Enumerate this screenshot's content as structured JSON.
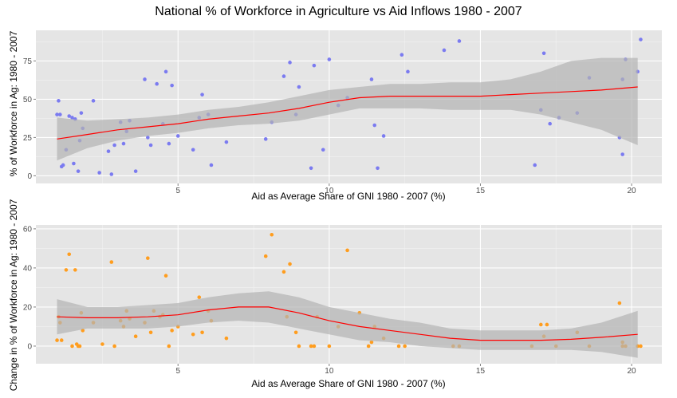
{
  "figure": {
    "title": "National % of Workforce in Agriculture vs Aid Inflows 1980 - 2007"
  },
  "colors": {
    "panel": "#e5e5e5",
    "grid_major": "#ffffff",
    "grid_minor": "#f2f2f2",
    "ribbon": "#b3b3b3",
    "smooth": "#ff0000",
    "points_top": "#7b7bf0",
    "points_bottom": "#ff9d1e"
  },
  "chart_data": [
    {
      "type": "scatter",
      "xlabel": "Aid as Average Share of GNI 1980 - 2007 (%)",
      "ylabel": "% of Workforce in Ag: 1980 - 2007",
      "xlim": [
        0.3,
        21.0
      ],
      "ylim": [
        -5,
        95
      ],
      "xticks": [
        "5",
        "10",
        "15",
        "20"
      ],
      "yticks": [
        "0",
        "25",
        "50",
        "75"
      ],
      "grid": true,
      "series": [
        {
          "kind": "points",
          "x": [
            1.0,
            1.05,
            1.1,
            1.15,
            1.2,
            1.3,
            1.4,
            1.5,
            1.55,
            1.6,
            1.7,
            1.75,
            1.8,
            1.85,
            2.2,
            2.4,
            2.7,
            2.8,
            2.9,
            3.1,
            3.2,
            3.3,
            3.4,
            3.6,
            3.9,
            4.0,
            4.1,
            4.3,
            4.5,
            4.6,
            4.7,
            4.8,
            5.0,
            5.5,
            5.7,
            5.8,
            6.0,
            6.1,
            6.6,
            7.9,
            8.1,
            8.5,
            8.7,
            8.9,
            9.0,
            9.4,
            9.5,
            9.8,
            10.0,
            10.3,
            10.6,
            11.4,
            11.5,
            11.6,
            11.8,
            12.4,
            12.6,
            13.8,
            14.3,
            16.8,
            17.0,
            17.1,
            17.3,
            17.6,
            18.2,
            18.6,
            19.6,
            19.7,
            19.7,
            19.8,
            20.2,
            20.3
          ],
          "y": [
            40,
            49,
            40,
            6,
            7,
            17,
            39,
            38,
            8,
            37,
            3,
            23,
            41,
            31,
            49,
            2,
            16,
            1,
            20,
            35,
            21,
            29,
            36,
            3,
            63,
            25,
            20,
            60,
            34,
            68,
            21,
            59,
            26,
            17,
            38,
            53,
            40,
            7,
            22,
            24,
            35,
            65,
            74,
            40,
            58,
            5,
            72,
            17,
            76,
            46,
            51,
            63,
            33,
            5,
            26,
            79,
            68,
            82,
            88,
            7,
            43,
            80,
            34,
            38,
            41,
            64,
            25,
            14,
            63,
            76,
            68,
            89
          ]
        },
        {
          "kind": "smooth",
          "x": [
            1,
            2,
            3,
            4,
            5,
            6,
            7,
            8,
            9,
            10,
            11,
            12,
            13,
            14,
            15,
            16,
            17,
            18,
            19,
            20.2
          ],
          "y": [
            24,
            27,
            30,
            32,
            34,
            37,
            39,
            41,
            44,
            48,
            51,
            52,
            52,
            52,
            52,
            53,
            54,
            55,
            56,
            58
          ],
          "lower": [
            10,
            18,
            23,
            26,
            28,
            31,
            33,
            34,
            36,
            40,
            44,
            44,
            44,
            43,
            43,
            43,
            40,
            35,
            30,
            20
          ],
          "upper": [
            38,
            36,
            37,
            38,
            40,
            43,
            45,
            48,
            52,
            56,
            58,
            60,
            60,
            61,
            61,
            63,
            68,
            75,
            77,
            77
          ]
        }
      ]
    },
    {
      "type": "scatter",
      "xlabel": "Aid as Average Share of GNI 1980 - 2007 (%)",
      "ylabel": "Change in % of Workforce in Ag: 1980 - 2007",
      "xlim": [
        0.3,
        21.0
      ],
      "ylim": [
        -9,
        62
      ],
      "xticks": [
        "5",
        "10",
        "15",
        "20"
      ],
      "yticks": [
        "0",
        "20",
        "40",
        "60"
      ],
      "grid": true,
      "series": [
        {
          "kind": "points",
          "x": [
            1.0,
            1.05,
            1.1,
            1.15,
            1.3,
            1.4,
            1.5,
            1.6,
            1.65,
            1.7,
            1.75,
            1.8,
            1.85,
            2.2,
            2.5,
            2.8,
            2.9,
            3.1,
            3.2,
            3.3,
            3.4,
            3.6,
            3.9,
            4.0,
            4.1,
            4.2,
            4.4,
            4.5,
            4.6,
            4.7,
            4.8,
            5.0,
            5.5,
            5.7,
            5.8,
            6.0,
            6.1,
            6.6,
            7.9,
            8.1,
            8.5,
            8.6,
            8.7,
            8.9,
            9.0,
            9.4,
            9.5,
            9.6,
            10.0,
            10.3,
            10.6,
            11.0,
            11.3,
            11.4,
            11.5,
            11.8,
            12.3,
            12.5,
            14.1,
            14.3,
            16.7,
            17.0,
            17.1,
            17.2,
            17.5,
            18.2,
            18.6,
            19.6,
            19.7,
            19.7,
            19.8,
            20.2,
            20.3
          ],
          "y": [
            3,
            15,
            12,
            3,
            39,
            47,
            0,
            39,
            1,
            0,
            0,
            17,
            8,
            12,
            1,
            43,
            0,
            13,
            10,
            18,
            14,
            5,
            12,
            45,
            7,
            18,
            15,
            16,
            36,
            0,
            8,
            10,
            6,
            25,
            7,
            18,
            13,
            4,
            46,
            57,
            38,
            15,
            42,
            7,
            0,
            0,
            0,
            15,
            0,
            10,
            49,
            17,
            0,
            2,
            10,
            4,
            0,
            0,
            0,
            0,
            0,
            11,
            5,
            11,
            0,
            7,
            0,
            22,
            0,
            2,
            0,
            0,
            0
          ]
        },
        {
          "kind": "smooth",
          "x": [
            1,
            2,
            3,
            4,
            5,
            6,
            7,
            8,
            9,
            10,
            11,
            12,
            13,
            14,
            15,
            16,
            17,
            18,
            19,
            20.2
          ],
          "y": [
            15,
            14.5,
            14.5,
            15,
            16,
            18.5,
            20,
            20,
            17,
            13,
            10,
            8,
            6,
            4,
            3,
            3,
            3,
            3.5,
            4.5,
            6
          ],
          "lower": [
            6,
            9,
            9,
            9,
            10,
            12,
            13,
            12,
            9,
            6,
            3,
            2,
            0,
            -1,
            -2,
            -2,
            -2,
            -2,
            -3,
            -6
          ],
          "upper": [
            24,
            20,
            20,
            21,
            22,
            25,
            27,
            28,
            25,
            20,
            17,
            14,
            12,
            9,
            8,
            8,
            8,
            9,
            12,
            18
          ]
        }
      ]
    }
  ]
}
